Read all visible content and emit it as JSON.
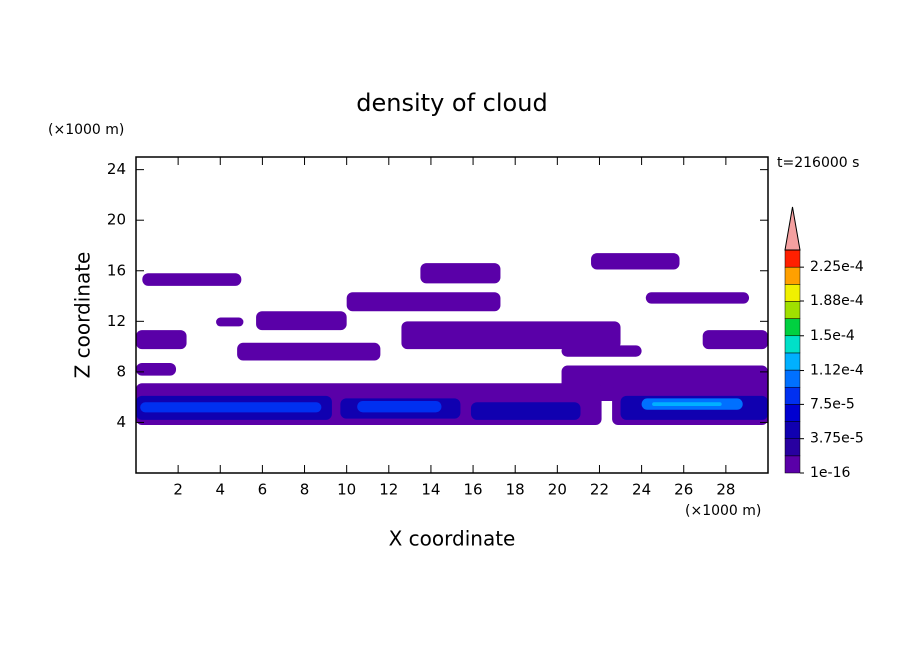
{
  "chart_data": {
    "type": "contour",
    "title": "density of cloud",
    "x_label": "X coordinate",
    "y_label": "Z coordinate",
    "x_unit": "(×1000 m)",
    "y_unit": "(×1000 m)",
    "annotation": "t=216000 s",
    "xlim": [
      0,
      30
    ],
    "ylim": [
      0,
      25
    ],
    "xticks": [
      2,
      4,
      6,
      8,
      10,
      12,
      14,
      16,
      18,
      20,
      22,
      24,
      26,
      28
    ],
    "yticks": [
      4,
      8,
      12,
      16,
      20,
      24
    ],
    "colorbar": {
      "lim": [
        1e-16,
        0.00024375
      ],
      "colors": [
        "#5a00a8",
        "#2800a0",
        "#1000b0",
        "#0000d0",
        "#0030f0",
        "#0070ff",
        "#00b0ff",
        "#00e0c8",
        "#00d040",
        "#a0e000",
        "#f0f000",
        "#ffa000",
        "#ff2000"
      ],
      "extend_color": "#f4a0a0",
      "ticks": [
        {
          "value": 1e-16,
          "label": "1e-16"
        },
        {
          "value": 3.75e-05,
          "label": "3.75e-5"
        },
        {
          "value": 7.5e-05,
          "label": "7.5e-5"
        },
        {
          "value": 0.000112,
          "label": "1.12e-4"
        },
        {
          "value": 0.00015,
          "label": "1.5e-4"
        },
        {
          "value": 0.000188,
          "label": "1.88e-4"
        },
        {
          "value": 0.000225,
          "label": "2.25e-4"
        }
      ]
    },
    "regions": [
      {
        "x": [
          21.6,
          25.8
        ],
        "z": [
          16.1,
          17.4
        ],
        "value": 1e-06
      },
      {
        "x": [
          0.3,
          5.0
        ],
        "z": [
          14.8,
          15.8
        ],
        "value": 1e-06
      },
      {
        "x": [
          13.5,
          17.3
        ],
        "z": [
          15.0,
          16.6
        ],
        "value": 1e-06
      },
      {
        "x": [
          10.0,
          17.3
        ],
        "z": [
          12.8,
          14.3
        ],
        "value": 1e-06
      },
      {
        "x": [
          24.2,
          29.1
        ],
        "z": [
          13.4,
          14.3
        ],
        "value": 1e-06
      },
      {
        "x": [
          5.7,
          10.0
        ],
        "z": [
          11.3,
          12.8
        ],
        "value": 1e-06
      },
      {
        "x": [
          3.8,
          5.1
        ],
        "z": [
          11.6,
          12.3
        ],
        "value": 1e-06
      },
      {
        "x": [
          12.6,
          23.0
        ],
        "z": [
          9.8,
          12.0
        ],
        "value": 1e-06
      },
      {
        "x": [
          0.0,
          2.4
        ],
        "z": [
          9.8,
          11.3
        ],
        "value": 1e-06
      },
      {
        "x": [
          26.9,
          30.0
        ],
        "z": [
          9.8,
          11.3
        ],
        "value": 1e-06
      },
      {
        "x": [
          4.8,
          11.6
        ],
        "z": [
          8.9,
          10.3
        ],
        "value": 1e-06
      },
      {
        "x": [
          20.2,
          24.0
        ],
        "z": [
          9.2,
          10.1
        ],
        "value": 1e-06
      },
      {
        "x": [
          0.0,
          1.9
        ],
        "z": [
          7.7,
          8.7
        ],
        "value": 1e-06
      },
      {
        "x": [
          20.2,
          30.0
        ],
        "z": [
          5.7,
          8.5
        ],
        "value": 1e-06
      },
      {
        "x": [
          0.0,
          22.1
        ],
        "z": [
          3.8,
          7.1
        ],
        "value": 1e-06
      },
      {
        "x": [
          22.6,
          30.0
        ],
        "z": [
          3.8,
          6.9
        ],
        "value": 1e-06
      },
      {
        "x": [
          0.0,
          9.3
        ],
        "z": [
          4.2,
          6.1
        ],
        "value": 4e-05
      },
      {
        "x": [
          9.7,
          15.4
        ],
        "z": [
          4.3,
          5.9
        ],
        "value": 4e-05
      },
      {
        "x": [
          15.9,
          21.1
        ],
        "z": [
          4.2,
          5.6
        ],
        "value": 4e-05
      },
      {
        "x": [
          23.0,
          30.0
        ],
        "z": [
          4.2,
          6.1
        ],
        "value": 4e-05
      },
      {
        "x": [
          0.2,
          8.8
        ],
        "z": [
          4.8,
          5.6
        ],
        "value": 8e-05
      },
      {
        "x": [
          10.5,
          14.5
        ],
        "z": [
          4.8,
          5.7
        ],
        "value": 8e-05
      },
      {
        "x": [
          24.0,
          28.8
        ],
        "z": [
          5.0,
          5.9
        ],
        "value": 0.0001
      },
      {
        "x": [
          24.5,
          27.8
        ],
        "z": [
          5.3,
          5.6
        ],
        "value": 0.00013
      }
    ]
  }
}
